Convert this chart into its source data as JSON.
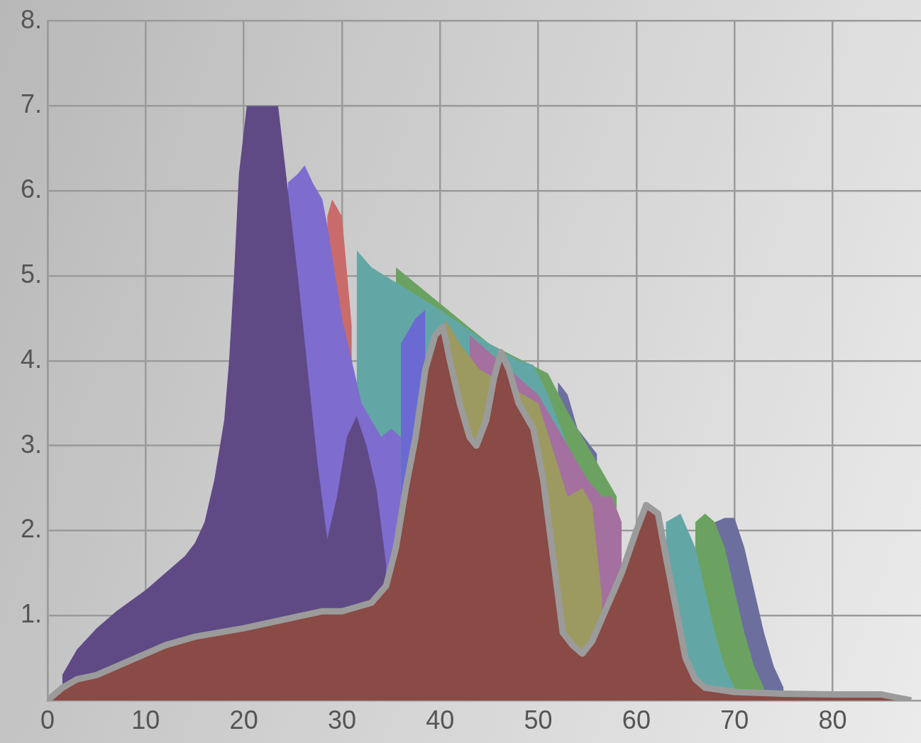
{
  "chart_data": {
    "type": "area",
    "xlim": [
      0,
      89
    ],
    "ylim": [
      0,
      8
    ],
    "xticks": [
      0,
      10,
      20,
      30,
      40,
      50,
      60,
      70,
      80
    ],
    "yticks": [
      {
        "value": 1,
        "label": "1."
      },
      {
        "value": 2,
        "label": "2."
      },
      {
        "value": 3,
        "label": "3."
      },
      {
        "value": 4,
        "label": "4."
      },
      {
        "value": 5,
        "label": "5."
      },
      {
        "value": 6,
        "label": "6."
      },
      {
        "value": 7,
        "label": "7."
      },
      {
        "value": 8,
        "label": "8."
      }
    ],
    "grid": true,
    "legend": false,
    "series": [
      {
        "color": "#6c6e9e",
        "x": [
          52,
          53,
          54,
          56
        ],
        "values": [
          3.75,
          3.6,
          3.2,
          2.9
        ]
      },
      {
        "color": "#6c6e9e",
        "x": [
          68,
          69,
          70,
          71,
          72,
          73,
          74,
          75
        ],
        "values": [
          2.1,
          2.15,
          2.15,
          1.8,
          1.3,
          0.8,
          0.4,
          0.15
        ]
      },
      {
        "color": "#6ba262",
        "x": [
          35.5,
          45,
          51,
          53,
          55,
          58
        ],
        "values": [
          5.1,
          4.2,
          3.85,
          3.4,
          3.0,
          2.4
        ]
      },
      {
        "color": "#6ba262",
        "x": [
          66,
          67,
          68,
          69,
          70,
          71,
          72,
          73
        ],
        "values": [
          2.1,
          2.2,
          2.1,
          1.8,
          1.3,
          0.8,
          0.4,
          0.15
        ]
      },
      {
        "color": "#62a7a6",
        "x": [
          31.5,
          33,
          40,
          45,
          48,
          49.5,
          51,
          53,
          55
        ],
        "values": [
          5.3,
          5.1,
          4.6,
          4.2,
          4.0,
          3.95,
          3.6,
          3.0,
          2.6
        ]
      },
      {
        "color": "#62a7a6",
        "x": [
          63,
          64.5,
          66,
          67,
          68,
          69,
          70
        ],
        "values": [
          2.1,
          2.2,
          1.8,
          1.3,
          0.8,
          0.4,
          0.15
        ]
      },
      {
        "color": "#a370a0",
        "x": [
          43,
          45,
          47,
          50,
          55,
          56.5,
          57.5,
          58.5
        ],
        "values": [
          4.3,
          4.1,
          3.9,
          3.6,
          2.6,
          2.4,
          2.4,
          2.1
        ]
      },
      {
        "color": "#9c9a60",
        "x": [
          40.5,
          42,
          44,
          50,
          53,
          54.5,
          55.5,
          56.5
        ],
        "values": [
          4.5,
          4.2,
          3.9,
          3.5,
          2.4,
          2.5,
          2.3,
          1.2
        ]
      },
      {
        "color": "#6a6ad2",
        "x": [
          36,
          37.5,
          38.5
        ],
        "values": [
          4.2,
          4.5,
          4.6
        ]
      },
      {
        "color": "#c86b6a",
        "x": [
          28.5,
          29,
          30,
          31
        ],
        "values": [
          5.7,
          5.9,
          5.7,
          4.4
        ]
      },
      {
        "color": "#7e6ccf",
        "x": [
          24.5,
          25.5,
          26.2,
          27,
          28,
          28.5,
          30,
          32,
          34,
          35,
          36
        ],
        "values": [
          6.1,
          6.2,
          6.3,
          6.1,
          5.9,
          5.6,
          4.5,
          3.5,
          3.1,
          3.2,
          3.1
        ]
      },
      {
        "color": "#5f4a86",
        "x": [
          1.5,
          3,
          5,
          7,
          10,
          12,
          14,
          15,
          16,
          17,
          18,
          18.5,
          19,
          19.5,
          20.3,
          23.5,
          24.5,
          25.5,
          26.5,
          27.5,
          28.5,
          29.5,
          30.5,
          31.5,
          32.5,
          33.5,
          34.5
        ],
        "values": [
          0.3,
          0.6,
          0.85,
          1.05,
          1.3,
          1.5,
          1.7,
          1.85,
          2.1,
          2.6,
          3.3,
          4.0,
          5.0,
          6.2,
          7.0,
          7.0,
          6.0,
          5.0,
          3.9,
          2.8,
          1.9,
          2.4,
          3.1,
          3.35,
          3.0,
          2.5,
          1.6
        ]
      },
      {
        "color": "#8a4a45",
        "x": [
          0,
          1.5,
          3,
          5,
          7,
          10,
          12,
          15,
          20,
          24,
          28,
          30,
          33,
          34.5,
          35.5,
          36.5,
          37.5,
          38.5,
          39.5,
          40.3,
          41,
          42,
          43,
          43.7,
          44.7,
          45.5,
          46.2,
          47,
          48,
          49.5,
          50.5,
          51.5,
          52.5,
          53.5,
          54.5,
          55.5,
          57,
          58.5,
          60,
          61,
          62.2,
          63,
          64,
          65,
          66,
          67,
          70,
          75,
          80,
          85,
          88
        ],
        "values": [
          0,
          0.15,
          0.25,
          0.3,
          0.4,
          0.55,
          0.65,
          0.75,
          0.85,
          0.95,
          1.05,
          1.05,
          1.15,
          1.35,
          1.8,
          2.5,
          3.1,
          3.9,
          4.3,
          4.4,
          4.0,
          3.5,
          3.1,
          3.0,
          3.3,
          3.8,
          4.1,
          3.9,
          3.5,
          3.2,
          2.6,
          1.7,
          0.8,
          0.65,
          0.55,
          0.7,
          1.1,
          1.5,
          2.0,
          2.3,
          2.2,
          1.7,
          1.1,
          0.5,
          0.25,
          0.15,
          0.1,
          0.08,
          0.07,
          0.07,
          0
        ]
      }
    ]
  }
}
